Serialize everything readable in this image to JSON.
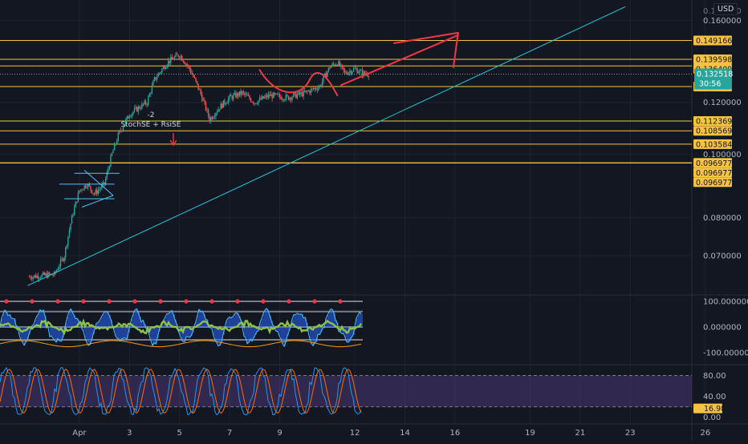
{
  "header": {
    "currency": "USD",
    "top_partial_tick": "0.170000"
  },
  "chart_data": {
    "type": "candlestick",
    "instrument_currency": "USD",
    "x_ticks": [
      "Apr",
      "3",
      "5",
      "7",
      "9",
      "12",
      "14",
      "16",
      "19",
      "21",
      "23",
      "26"
    ],
    "price_axis": {
      "scale": "log",
      "ylim": [
        0.062,
        0.172
      ],
      "tick_labels": [
        "0.160000",
        "0.120000",
        "0.100000",
        "0.080000",
        "0.070000"
      ]
    },
    "horizontal_levels": [
      "0.149166",
      "0.139598",
      "0.136409",
      "0.126840",
      "0.112369",
      "0.108569",
      "0.103584",
      "0.096977",
      "0.096977",
      "0.096977"
    ],
    "last_price": "0.132518",
    "countdown": "30:56",
    "trendline": {
      "from_date": "Mar 30",
      "from_price": 0.063,
      "to_date": "Apr 23",
      "to_price": 0.168
    },
    "hand_drawn_forecast": {
      "from_date": "Apr 12",
      "from_price": 0.1275,
      "to_date": "Apr 16",
      "to_price": 0.152
    },
    "chart_annotation": {
      "count": "-2",
      "text": "StochSE + RsiSE"
    },
    "oscillator_panel": {
      "tick_labels": [
        "100.000000",
        "0.000000",
        "-100.000000"
      ],
      "range": [
        -100,
        100
      ]
    },
    "stoch_panel": {
      "tick_labels": [
        "80.00",
        "40.00",
        "0.00"
      ],
      "current_value": "16.98",
      "overbought": 80,
      "oversold": 20
    }
  }
}
